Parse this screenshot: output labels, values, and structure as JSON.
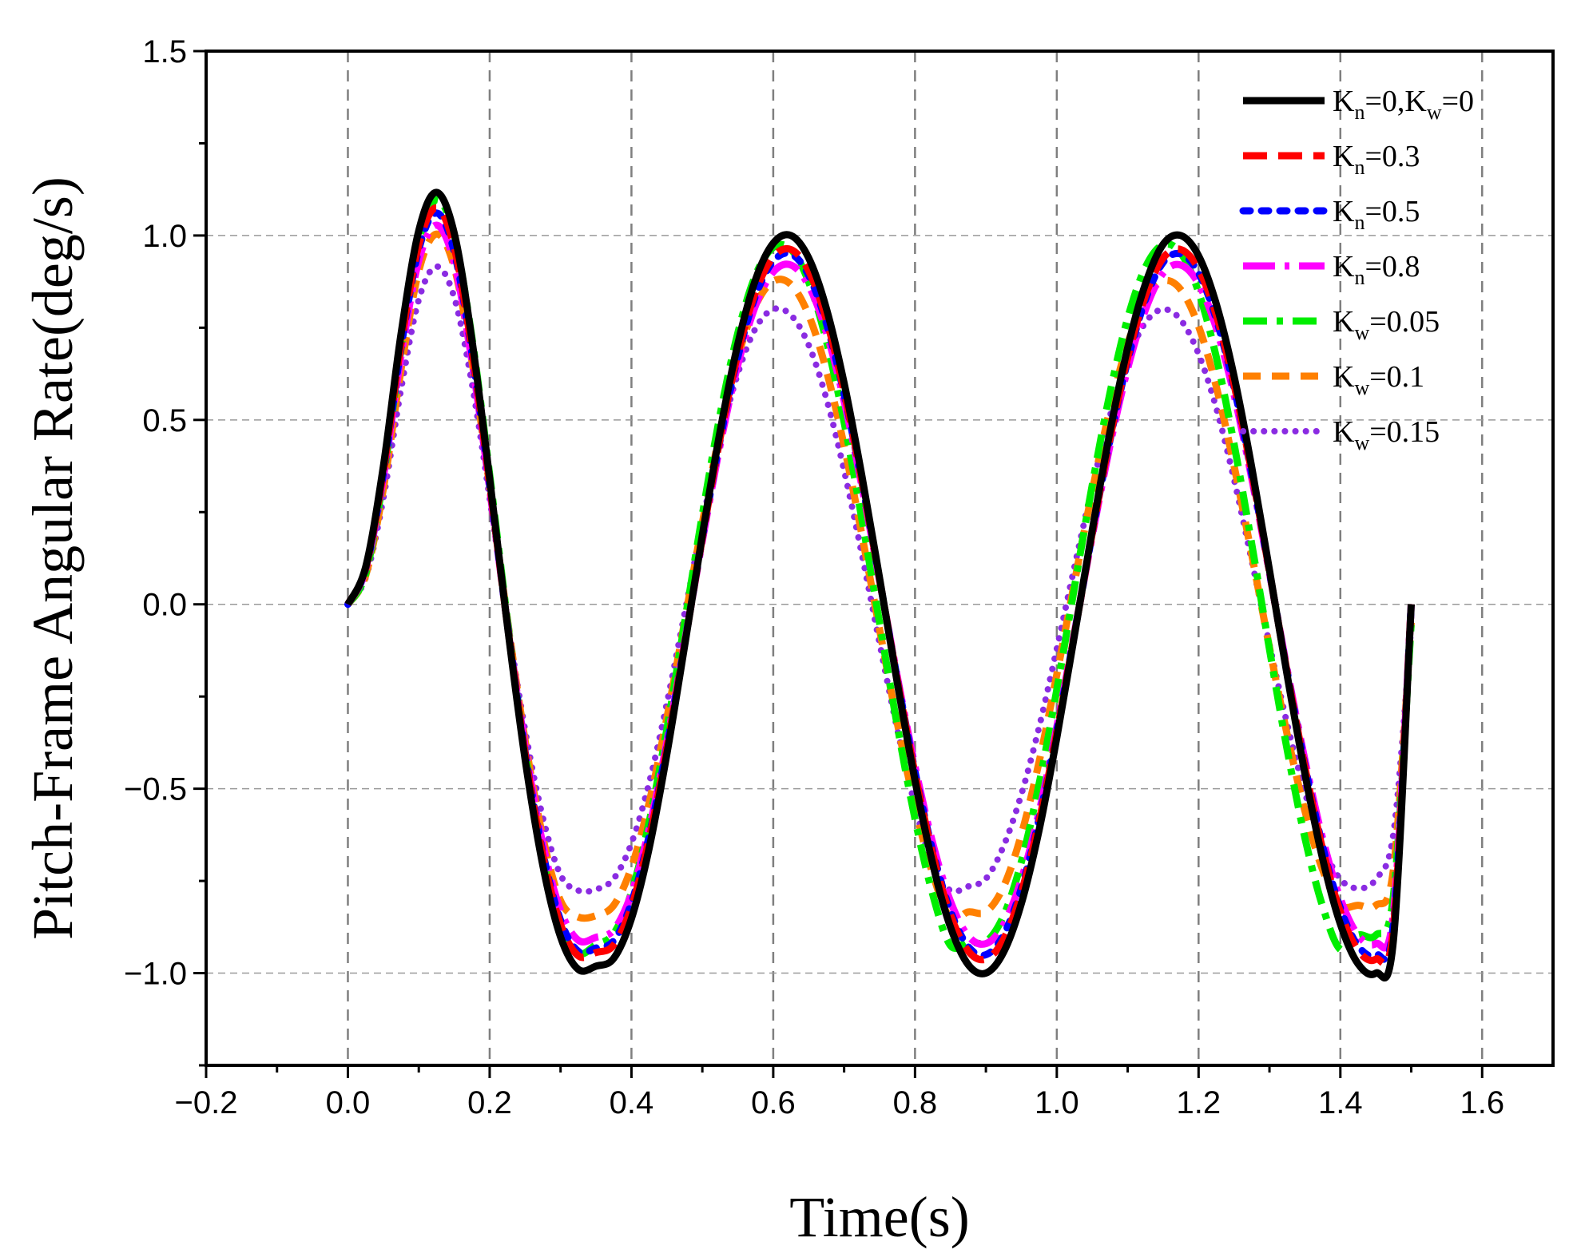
{
  "chart_data": {
    "type": "line",
    "title": "",
    "xlabel": "Time(s)",
    "ylabel": "Pitch-Frame Angular Rate(deg/s)",
    "xlim": [
      -0.2,
      1.7
    ],
    "ylim": [
      -1.25,
      1.5
    ],
    "xticks": [
      -0.2,
      0.0,
      0.2,
      0.4,
      0.6,
      0.8,
      1.0,
      1.2,
      1.4,
      1.6
    ],
    "xtick_labels": [
      "−0.2",
      "0.0",
      "0.2",
      "0.4",
      "0.6",
      "0.8",
      "1.0",
      "1.2",
      "1.4",
      "1.6"
    ],
    "yticks": [
      -1.0,
      -0.5,
      0.0,
      0.5,
      1.0,
      1.5
    ],
    "ytick_labels": [
      "−1.0",
      "−0.5",
      "0.0",
      "0.5",
      "1.0",
      "1.5"
    ],
    "grid": "dashed",
    "legend_position": "top-right",
    "x": [
      0.0,
      0.025,
      0.05,
      0.075,
      0.1,
      0.125,
      0.15,
      0.175,
      0.2,
      0.225,
      0.25,
      0.275,
      0.3,
      0.325,
      0.35,
      0.375,
      0.4,
      0.425,
      0.45,
      0.475,
      0.5,
      0.525,
      0.55,
      0.575,
      0.6,
      0.625,
      0.65,
      0.675,
      0.7,
      0.725,
      0.75,
      0.775,
      0.8,
      0.825,
      0.85,
      0.875,
      0.9,
      0.925,
      0.95,
      0.975,
      1.0,
      1.025,
      1.05,
      1.075,
      1.1,
      1.125,
      1.15,
      1.175,
      1.2,
      1.225,
      1.25,
      1.275,
      1.3,
      1.325,
      1.35,
      1.375,
      1.4,
      1.425,
      1.45,
      1.475,
      1.5
    ],
    "series": [
      {
        "name": "Kn=0,Kw=0",
        "label_parts": [
          [
            "K",
            ""
          ],
          [
            "n",
            "sub"
          ],
          [
            "=0,K",
            ""
          ],
          [
            "w",
            "sub"
          ],
          [
            "=0",
            ""
          ]
        ],
        "color": "#000000",
        "style": "solid",
        "values": [
          0.0,
          0.101,
          0.373,
          0.733,
          1.013,
          1.117,
          1.006,
          0.716,
          0.341,
          -0.057,
          -0.42,
          -0.708,
          -0.902,
          -0.99,
          -0.981,
          -0.96,
          -0.852,
          -0.661,
          -0.405,
          -0.112,
          0.188,
          0.468,
          0.705,
          0.88,
          0.979,
          1.0,
          0.939,
          0.802,
          0.6,
          0.349,
          0.071,
          -0.213,
          -0.478,
          -0.704,
          -0.875,
          -0.977,
          -1.0,
          -0.943,
          -0.811,
          -0.612,
          -0.362,
          -0.083,
          0.201,
          0.468,
          0.696,
          0.869,
          0.976,
          1.0,
          0.945,
          0.814,
          0.619,
          0.371,
          0.092,
          -0.192,
          -0.459,
          -0.69,
          -0.867,
          -0.975,
          -1.0,
          -0.909,
          0.0
        ]
      },
      {
        "name": "Kn=0.3",
        "label_parts": [
          [
            "K",
            ""
          ],
          [
            "n",
            "sub"
          ],
          [
            "=0.3",
            ""
          ]
        ],
        "color": "#ff0000",
        "style": "dash-long",
        "values": [
          0.0,
          0.098,
          0.359,
          0.705,
          0.975,
          1.075,
          0.968,
          0.689,
          0.328,
          -0.055,
          -0.404,
          -0.681,
          -0.868,
          -0.953,
          -0.944,
          -0.924,
          -0.82,
          -0.636,
          -0.39,
          -0.108,
          0.181,
          0.45,
          0.679,
          0.847,
          0.942,
          0.962,
          0.904,
          0.772,
          0.577,
          0.336,
          0.068,
          -0.205,
          -0.46,
          -0.678,
          -0.842,
          -0.94,
          -0.962,
          -0.908,
          -0.781,
          -0.589,
          -0.348,
          -0.08,
          0.193,
          0.45,
          0.67,
          0.837,
          0.939,
          0.962,
          0.909,
          0.784,
          0.596,
          0.357,
          0.088,
          -0.185,
          -0.442,
          -0.664,
          -0.834,
          -0.938,
          -0.962,
          -0.875,
          0.0
        ]
      },
      {
        "name": "Kn=0.5",
        "label_parts": [
          [
            "K",
            ""
          ],
          [
            "n",
            "sub"
          ],
          [
            "=0.5",
            ""
          ]
        ],
        "color": "#0000ff",
        "style": "dot-short",
        "values": [
          0.0,
          0.096,
          0.354,
          0.696,
          0.962,
          1.061,
          0.956,
          0.68,
          0.324,
          -0.054,
          -0.399,
          -0.673,
          -0.857,
          -0.941,
          -0.932,
          -0.912,
          -0.809,
          -0.628,
          -0.385,
          -0.106,
          0.179,
          0.445,
          0.67,
          0.836,
          0.93,
          0.95,
          0.892,
          0.762,
          0.57,
          0.332,
          0.067,
          -0.202,
          -0.454,
          -0.669,
          -0.831,
          -0.928,
          -0.95,
          -0.896,
          -0.77,
          -0.581,
          -0.344,
          -0.079,
          0.191,
          0.445,
          0.661,
          0.826,
          0.927,
          0.95,
          0.898,
          0.773,
          0.588,
          0.352,
          0.087,
          -0.182,
          -0.436,
          -0.656,
          -0.824,
          -0.926,
          -0.95,
          -0.864,
          0.0
        ]
      },
      {
        "name": "Kn=0.8",
        "label_parts": [
          [
            "K",
            ""
          ],
          [
            "n",
            "sub"
          ],
          [
            "=0.8",
            ""
          ]
        ],
        "color": "#ff00ff",
        "style": "dash-dot",
        "values": [
          0.0,
          0.094,
          0.343,
          0.674,
          0.932,
          1.028,
          0.926,
          0.659,
          0.314,
          -0.052,
          -0.386,
          -0.651,
          -0.83,
          -0.911,
          -0.903,
          -0.883,
          -0.784,
          -0.608,
          -0.373,
          -0.103,
          0.173,
          0.431,
          0.649,
          0.81,
          0.901,
          0.92,
          0.864,
          0.738,
          0.552,
          0.321,
          0.065,
          -0.196,
          -0.44,
          -0.648,
          -0.805,
          -0.899,
          -0.92,
          -0.868,
          -0.746,
          -0.563,
          -0.333,
          -0.076,
          0.185,
          0.431,
          0.64,
          0.799,
          0.898,
          0.92,
          0.869,
          0.749,
          0.569,
          0.341,
          0.085,
          -0.177,
          -0.422,
          -0.635,
          -0.798,
          -0.897,
          -0.92,
          -0.836,
          0.0
        ]
      },
      {
        "name": "Kw=0.05",
        "label_parts": [
          [
            "K",
            ""
          ],
          [
            "w",
            "sub"
          ],
          [
            "=0.05",
            ""
          ]
        ],
        "color": "#00ee00",
        "style": "dash-dot-green",
        "values": [
          0.0,
          0.083,
          0.342,
          0.694,
          0.978,
          1.097,
          1.0,
          0.722,
          0.352,
          -0.042,
          -0.401,
          -0.689,
          -0.876,
          -0.947,
          -0.923,
          -0.893,
          -0.781,
          -0.59,
          -0.338,
          -0.05,
          0.243,
          0.513,
          0.735,
          0.892,
          0.968,
          0.962,
          0.874,
          0.714,
          0.494,
          0.232,
          -0.05,
          -0.329,
          -0.582,
          -0.787,
          -0.925,
          -0.915,
          -0.915,
          -0.844,
          -0.698,
          -0.487,
          -0.232,
          0.047,
          0.323,
          0.573,
          0.776,
          0.914,
          0.975,
          0.952,
          0.847,
          0.67,
          0.435,
          0.163,
          -0.122,
          -0.394,
          -0.633,
          -0.819,
          -0.936,
          -0.897,
          -0.897,
          -0.789,
          -0.05
        ]
      },
      {
        "name": "Kw=0.1",
        "label_parts": [
          [
            "K",
            ""
          ],
          [
            "w",
            "sub"
          ],
          [
            "=0.1",
            ""
          ]
        ],
        "color": "#ff8000",
        "style": "dash-short",
        "values": [
          0.0,
          0.078,
          0.313,
          0.637,
          0.904,
          1.004,
          0.914,
          0.659,
          0.32,
          -0.04,
          -0.369,
          -0.632,
          -0.804,
          -0.848,
          -0.844,
          -0.816,
          -0.713,
          -0.538,
          -0.308,
          -0.046,
          0.221,
          0.467,
          0.669,
          0.81,
          0.876,
          0.867,
          0.784,
          0.634,
          0.43,
          0.189,
          -0.068,
          -0.322,
          -0.549,
          -0.731,
          -0.851,
          -0.834,
          -0.834,
          -0.765,
          -0.624,
          -0.427,
          -0.191,
          0.06,
          0.307,
          0.529,
          0.707,
          0.826,
          0.877,
          0.853,
          0.754,
          0.59,
          0.376,
          0.134,
          -0.117,
          -0.353,
          -0.56,
          -0.72,
          -0.815,
          -0.816,
          -0.816,
          -0.718,
          -0.05
        ]
      },
      {
        "name": "Kw=0.15",
        "label_parts": [
          [
            "K",
            ""
          ],
          [
            "w",
            "sub"
          ],
          [
            "=0.15",
            ""
          ]
        ],
        "color": "#8a2be2",
        "style": "dot-round",
        "values": [
          0.0,
          0.072,
          0.287,
          0.583,
          0.826,
          0.916,
          0.832,
          0.598,
          0.288,
          -0.041,
          -0.341,
          -0.578,
          -0.734,
          -0.776,
          -0.773,
          -0.744,
          -0.648,
          -0.484,
          -0.268,
          -0.024,
          0.222,
          0.446,
          0.625,
          0.748,
          0.8,
          0.784,
          0.703,
          0.558,
          0.363,
          0.136,
          -0.105,
          -0.339,
          -0.546,
          -0.708,
          -0.776,
          -0.765,
          -0.744,
          -0.655,
          -0.515,
          -0.333,
          -0.121,
          0.102,
          0.318,
          0.51,
          0.663,
          0.764,
          0.8,
          0.771,
          0.679,
          0.532,
          0.339,
          0.118,
          -0.109,
          -0.324,
          -0.51,
          -0.655,
          -0.745,
          -0.77,
          -0.745,
          -0.62,
          -0.06
        ]
      }
    ]
  }
}
